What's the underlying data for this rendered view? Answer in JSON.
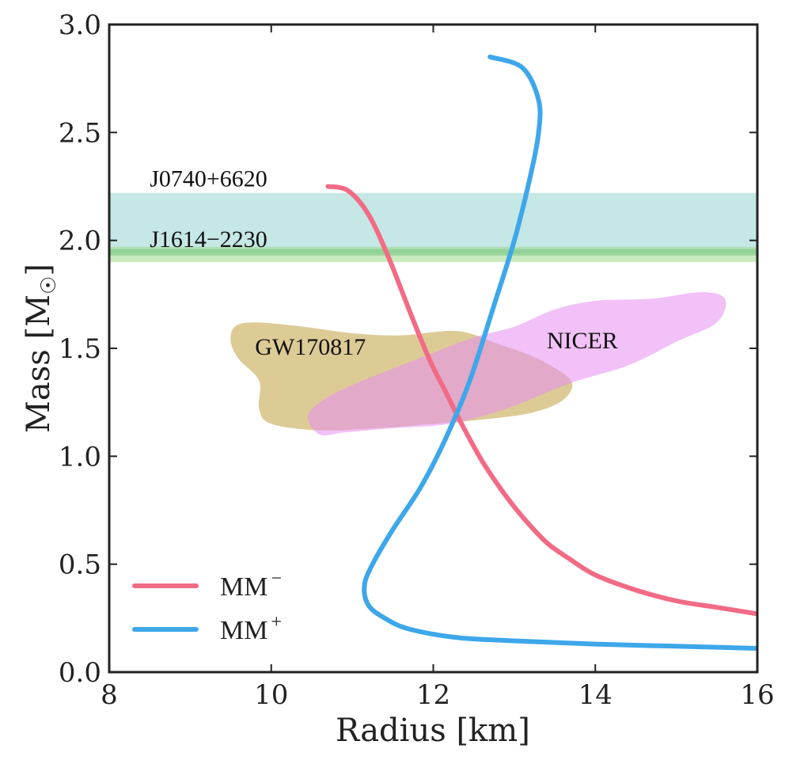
{
  "chart_data": {
    "type": "line",
    "xlabel": "Radius [km]",
    "ylabel": "Mass [M",
    "ylabel_sub": "☉",
    "ylabel_close": "]",
    "xlim": [
      8,
      16
    ],
    "ylim": [
      0.0,
      3.0
    ],
    "x_ticks": [
      8,
      10,
      12,
      14,
      16
    ],
    "x_tick_labels": [
      "8",
      "10",
      "12",
      "14",
      "16"
    ],
    "y_ticks": [
      0.0,
      0.5,
      1.0,
      1.5,
      2.0,
      2.5,
      3.0
    ],
    "y_tick_labels": [
      "0.0",
      "0.5",
      "1.0",
      "1.5",
      "2.0",
      "2.5",
      "3.0"
    ],
    "grid": false,
    "legend_position": "bottom-left",
    "series": [
      {
        "name": "MM",
        "sup": "−",
        "color": "#f26b85",
        "points": [
          [
            10.7,
            2.25
          ],
          [
            10.95,
            2.23
          ],
          [
            11.2,
            2.12
          ],
          [
            11.45,
            1.92
          ],
          [
            11.7,
            1.68
          ],
          [
            11.95,
            1.45
          ],
          [
            12.15,
            1.3
          ],
          [
            12.35,
            1.15
          ],
          [
            12.6,
            0.98
          ],
          [
            12.85,
            0.84
          ],
          [
            13.1,
            0.72
          ],
          [
            13.4,
            0.6
          ],
          [
            13.7,
            0.52
          ],
          [
            14.0,
            0.45
          ],
          [
            14.5,
            0.38
          ],
          [
            15.0,
            0.33
          ],
          [
            15.5,
            0.3
          ],
          [
            16.0,
            0.27
          ]
        ]
      },
      {
        "name": "MM",
        "sup": "+",
        "color": "#3ea7ea",
        "points": [
          [
            16.0,
            0.11
          ],
          [
            15.0,
            0.12
          ],
          [
            14.0,
            0.13
          ],
          [
            13.0,
            0.145
          ],
          [
            12.3,
            0.16
          ],
          [
            11.7,
            0.2
          ],
          [
            11.4,
            0.25
          ],
          [
            11.2,
            0.31
          ],
          [
            11.15,
            0.4
          ],
          [
            11.25,
            0.5
          ],
          [
            11.5,
            0.66
          ],
          [
            11.85,
            0.86
          ],
          [
            12.15,
            1.08
          ],
          [
            12.45,
            1.35
          ],
          [
            12.75,
            1.7
          ],
          [
            13.0,
            2.0
          ],
          [
            13.2,
            2.3
          ],
          [
            13.3,
            2.5
          ],
          [
            13.3,
            2.65
          ],
          [
            13.1,
            2.8
          ],
          [
            12.7,
            2.85
          ]
        ]
      }
    ],
    "bands": [
      {
        "name": "J0740+6620",
        "ymin": 1.94,
        "ymax": 2.22,
        "color": "#8ccfcb",
        "opacity": 0.5
      },
      {
        "name": "J1614−2230",
        "ymin": 1.9,
        "ymax": 1.97,
        "color": "#9ed98d",
        "opacity": 0.55
      },
      {
        "name": "",
        "ymin": 1.93,
        "ymax": 1.96,
        "color": "#86cc8a",
        "opacity": 0.7
      }
    ],
    "regions": [
      {
        "name": "GW170817",
        "color": "#d4be7c",
        "opacity": 0.8,
        "polygon": [
          [
            9.5,
            1.53
          ],
          [
            9.55,
            1.6
          ],
          [
            9.8,
            1.62
          ],
          [
            10.4,
            1.6
          ],
          [
            11.0,
            1.57
          ],
          [
            11.6,
            1.56
          ],
          [
            12.3,
            1.58
          ],
          [
            12.8,
            1.52
          ],
          [
            13.3,
            1.45
          ],
          [
            13.7,
            1.35
          ],
          [
            13.6,
            1.26
          ],
          [
            13.2,
            1.2
          ],
          [
            12.6,
            1.17
          ],
          [
            12.0,
            1.15
          ],
          [
            11.3,
            1.13
          ],
          [
            10.6,
            1.12
          ],
          [
            10.0,
            1.15
          ],
          [
            9.85,
            1.22
          ],
          [
            9.85,
            1.35
          ],
          [
            9.6,
            1.45
          ]
        ]
      },
      {
        "name": "NICER",
        "color": "#e68ef2",
        "opacity": 0.55,
        "polygon": [
          [
            10.6,
            1.1
          ],
          [
            10.9,
            1.11
          ],
          [
            11.5,
            1.13
          ],
          [
            12.2,
            1.15
          ],
          [
            12.9,
            1.22
          ],
          [
            13.7,
            1.34
          ],
          [
            14.4,
            1.42
          ],
          [
            15.0,
            1.53
          ],
          [
            15.5,
            1.62
          ],
          [
            15.6,
            1.73
          ],
          [
            15.3,
            1.76
          ],
          [
            14.7,
            1.73
          ],
          [
            14.0,
            1.72
          ],
          [
            13.5,
            1.68
          ],
          [
            13.0,
            1.6
          ],
          [
            12.5,
            1.55
          ],
          [
            11.8,
            1.45
          ],
          [
            11.0,
            1.33
          ],
          [
            10.6,
            1.25
          ],
          [
            10.45,
            1.18
          ]
        ]
      }
    ],
    "annotations": [
      {
        "text": "J0740+6620",
        "x": 8.5,
        "y": 2.25
      },
      {
        "text": "J1614−2230",
        "x": 8.5,
        "y": 1.97
      },
      {
        "text": "GW170817",
        "x": 9.8,
        "y": 1.47
      },
      {
        "text": "NICER",
        "x": 13.4,
        "y": 1.5
      }
    ]
  }
}
